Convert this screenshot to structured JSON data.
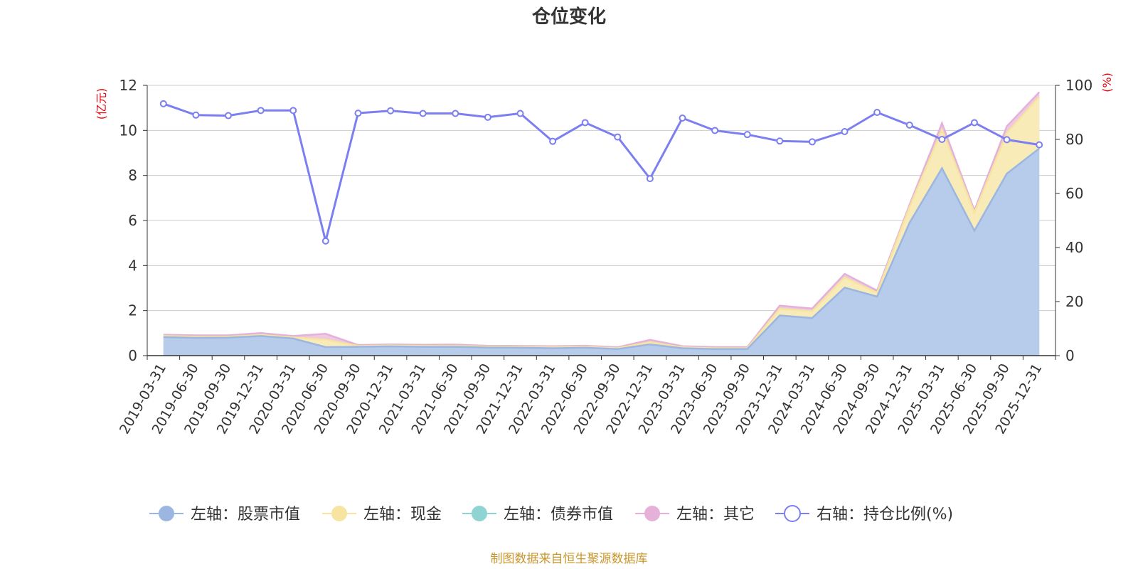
{
  "title": "仓位变化",
  "source_note": "制图数据来自恒生聚源数据库",
  "chart_data": {
    "type": "area",
    "x": [
      "2019-03-31",
      "2019-06-30",
      "2019-09-30",
      "2019-12-31",
      "2020-03-31",
      "2020-06-30",
      "2020-09-30",
      "2020-12-31",
      "2021-03-31",
      "2021-06-30",
      "2021-09-30",
      "2021-12-31",
      "2022-03-31",
      "2022-06-30",
      "2022-09-30",
      "2022-12-31",
      "2023-03-31",
      "2023-06-30",
      "2023-09-30",
      "2023-12-31",
      "2024-03-31",
      "2024-06-30",
      "2024-09-30",
      "2024-12-31",
      "2025-03-31",
      "2025-06-30",
      "2025-09-30",
      "2025-12-31"
    ],
    "y_left": {
      "unit": "(亿元)",
      "ylim": [
        0,
        12
      ],
      "ticks": [
        0,
        2,
        4,
        6,
        8,
        10,
        12
      ]
    },
    "y_right": {
      "unit": "(%)",
      "ylim": [
        0,
        100
      ],
      "ticks": [
        0,
        20,
        40,
        60,
        80,
        100
      ]
    },
    "series": [
      {
        "name": "左轴：股票市值",
        "axis": "left",
        "kind": "stacked-area",
        "color": "#9bb6e0",
        "fill": "#b7cbea",
        "values": [
          0.82,
          0.79,
          0.8,
          0.87,
          0.76,
          0.38,
          0.39,
          0.41,
          0.39,
          0.39,
          0.36,
          0.35,
          0.33,
          0.35,
          0.29,
          0.5,
          0.33,
          0.29,
          0.29,
          1.78,
          1.67,
          3.02,
          2.62,
          5.9,
          8.32,
          5.55,
          8.08,
          9.2
        ]
      },
      {
        "name": "左轴：现金",
        "axis": "left",
        "kind": "stacked-area",
        "color": "#f7e4a0",
        "fill": "#f8ebb8",
        "values": [
          0.05,
          0.05,
          0.04,
          0.05,
          0.05,
          0.33,
          0.04,
          0.04,
          0.04,
          0.04,
          0.04,
          0.04,
          0.04,
          0.04,
          0.04,
          0.1,
          0.04,
          0.04,
          0.04,
          0.3,
          0.3,
          0.45,
          0.17,
          0.7,
          1.7,
          0.8,
          1.8,
          2.3
        ]
      },
      {
        "name": "左轴：债券市值",
        "axis": "left",
        "kind": "stacked-area",
        "color": "#8fd3d3",
        "fill": "#b5e2e2",
        "values": [
          0,
          0,
          0,
          0,
          0,
          0,
          0,
          0,
          0,
          0,
          0,
          0,
          0,
          0,
          0,
          0,
          0,
          0,
          0,
          0,
          0,
          0,
          0,
          0,
          0,
          0,
          0,
          0
        ]
      },
      {
        "name": "左轴：其它",
        "axis": "left",
        "kind": "stacked-area",
        "color": "#e6b1d8",
        "fill": "#efc8e2",
        "values": [
          0.06,
          0.06,
          0.06,
          0.08,
          0.06,
          0.26,
          0.04,
          0.05,
          0.05,
          0.06,
          0.04,
          0.04,
          0.05,
          0.05,
          0.04,
          0.1,
          0.05,
          0.05,
          0.05,
          0.14,
          0.12,
          0.16,
          0.1,
          0.1,
          0.3,
          0.1,
          0.3,
          0.2
        ]
      },
      {
        "name": "右轴：持仓比例(%)",
        "axis": "right",
        "kind": "line",
        "color": "#7b7ff0",
        "values": [
          93.2,
          89.0,
          88.8,
          90.7,
          90.7,
          42.4,
          89.7,
          90.6,
          89.6,
          89.6,
          88.2,
          89.6,
          79.3,
          86.2,
          80.9,
          65.5,
          87.9,
          83.3,
          81.8,
          79.4,
          79.1,
          82.9,
          90.0,
          85.3,
          80.0,
          86.2,
          79.9,
          78.0
        ]
      }
    ],
    "grid": true,
    "legend_position": "bottom"
  },
  "legend": [
    {
      "label": "左轴：股票市值"
    },
    {
      "label": "左轴：现金"
    },
    {
      "label": "左轴：债券市值"
    },
    {
      "label": "左轴：其它"
    },
    {
      "label": "右轴：持仓比例(%)"
    }
  ]
}
